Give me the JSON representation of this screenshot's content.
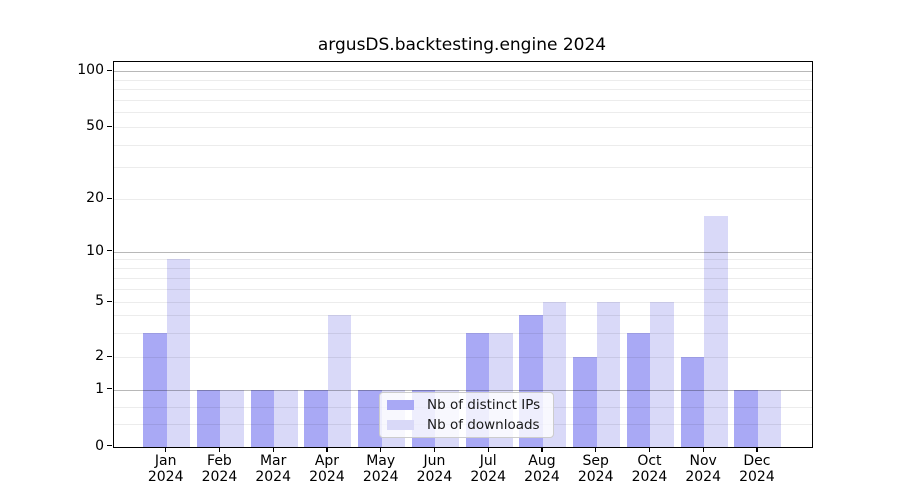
{
  "title": "argusDS.backtesting.engine 2024",
  "legend": {
    "position": "lower center",
    "items": [
      {
        "label": "Nb of distinct IPs",
        "color": "#a9a9f5"
      },
      {
        "label": "Nb of downloads",
        "color": "#d9d9f8"
      }
    ]
  },
  "y_axis": {
    "tick_labels": [
      "0",
      "1",
      "2",
      "5",
      "10",
      "20",
      "50",
      "100"
    ]
  },
  "x_axis": {
    "months": [
      "Jan",
      "Feb",
      "Mar",
      "Apr",
      "May",
      "Jun",
      "Jul",
      "Aug",
      "Sep",
      "Oct",
      "Nov",
      "Dec"
    ],
    "year": "2024"
  },
  "chart_data": {
    "type": "bar",
    "title": "argusDS.backtesting.engine 2024",
    "categories": [
      "Jan 2024",
      "Feb 2024",
      "Mar 2024",
      "Apr 2024",
      "May 2024",
      "Jun 2024",
      "Jul 2024",
      "Aug 2024",
      "Sep 2024",
      "Oct 2024",
      "Nov 2024",
      "Dec 2024"
    ],
    "series": [
      {
        "name": "Nb of distinct IPs",
        "color": "#a9a9f5",
        "values": [
          3,
          1,
          1,
          1,
          1,
          1,
          3,
          4,
          2,
          3,
          2,
          1
        ]
      },
      {
        "name": "Nb of downloads",
        "color": "#d9d9f8",
        "values": [
          9,
          1,
          1,
          4,
          1,
          1,
          3,
          5,
          5,
          5,
          16,
          1
        ]
      }
    ],
    "xlabel": "",
    "ylabel": "",
    "yscale": "log (with 0 baseline)",
    "yticks": [
      0,
      1,
      2,
      5,
      10,
      20,
      50,
      100
    ],
    "ylim": [
      0,
      110
    ],
    "grid": true,
    "legend_position": "lower center"
  }
}
